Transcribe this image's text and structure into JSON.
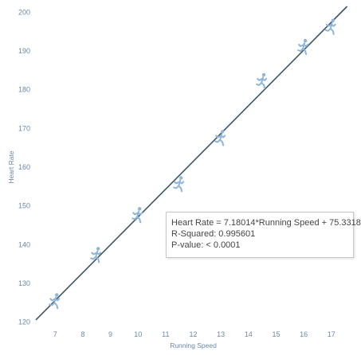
{
  "colors": {
    "trend_line": "#3d5566",
    "marker": "#8fb5d8",
    "tick_text": "#6b88a8",
    "tooltip_text": "#444444"
  },
  "icons": {
    "marker_icon": "runner-icon"
  },
  "chart_data": {
    "type": "scatter",
    "title": "",
    "xlabel": "Running Speed",
    "ylabel": "Heart Rate",
    "xlim": [
      6.3,
      17.7
    ],
    "ylim": [
      118.5,
      201.5
    ],
    "x_ticks": [
      7,
      8,
      9,
      10,
      11,
      12,
      13,
      14,
      15,
      16,
      17
    ],
    "y_ticks": [
      120,
      130,
      140,
      150,
      160,
      170,
      180,
      190,
      200
    ],
    "grid": false,
    "points": [
      {
        "x": 7,
        "y": 125.4
      },
      {
        "x": 8.5,
        "y": 137.3
      },
      {
        "x": 10,
        "y": 147.6
      },
      {
        "x": 11.5,
        "y": 155.6
      },
      {
        "x": 13,
        "y": 167.5
      },
      {
        "x": 14.5,
        "y": 182.2
      },
      {
        "x": 16,
        "y": 191.0
      },
      {
        "x": 17,
        "y": 196.2
      }
    ],
    "trend_line": {
      "slope": 7.18014,
      "intercept": 75.3318
    },
    "annotation": {
      "equation": "Heart Rate = 7.18014*Running Speed + 75.3318",
      "r_squared": "R-Squared: 0.995601",
      "p_value": "P-value: < 0.0001"
    }
  }
}
